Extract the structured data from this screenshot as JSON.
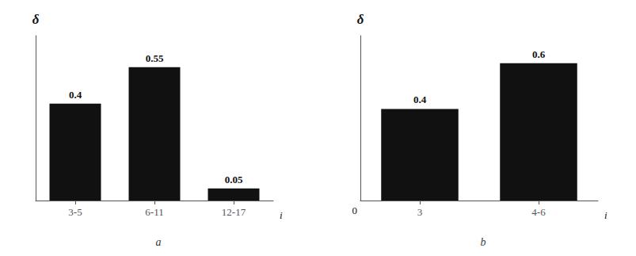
{
  "chart_data": [
    {
      "type": "bar",
      "title": "a",
      "xlabel": "i",
      "ylabel": "δ",
      "categories": [
        "3-5",
        "6-11",
        "12-17"
      ],
      "values": [
        0.4,
        0.55,
        0.05
      ],
      "value_labels": [
        "0.4",
        "0.55",
        "0.05"
      ],
      "color": "#111111",
      "ylim": [
        0,
        0.68
      ],
      "tick_labels": "x",
      "data_labels": true,
      "grid": false
    },
    {
      "type": "bar",
      "title": "b",
      "xlabel": "i",
      "ylabel": "δ",
      "categories": [
        "3",
        "4-6"
      ],
      "values": [
        0.4,
        0.6
      ],
      "value_labels": [
        "0.4",
        "0.6"
      ],
      "color": "#111111",
      "ylim": [
        0,
        0.72
      ],
      "tick_labels": "x",
      "data_labels": true,
      "grid": false,
      "annotations": [
        "0"
      ]
    }
  ]
}
